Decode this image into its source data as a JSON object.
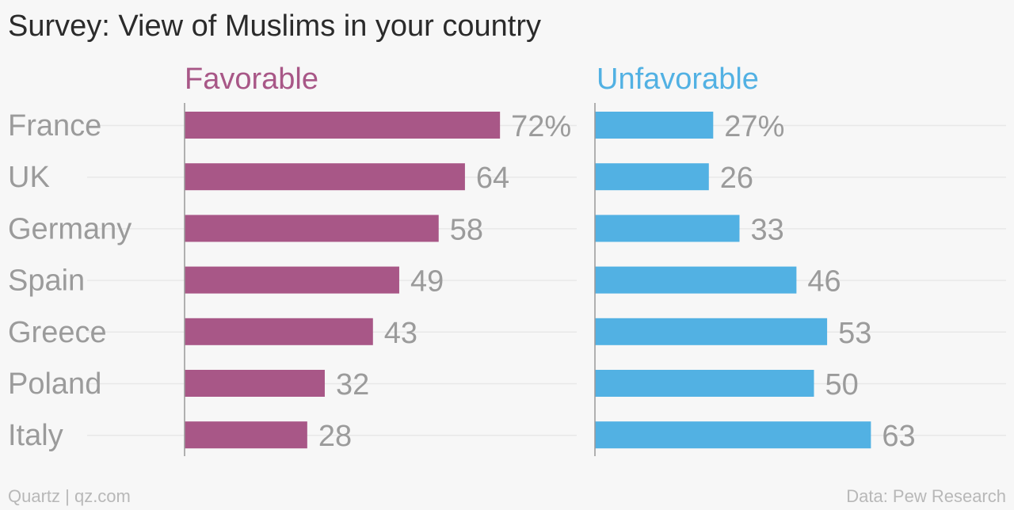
{
  "title": "Survey: View of Muslims in your country",
  "footer": {
    "source_left": "Quartz | qz.com",
    "source_right": "Data: Pew Research"
  },
  "colors": {
    "favorable": "#a85787",
    "unfavorable": "#52b1e3",
    "label": "#9b9b9b",
    "gridline": "#e8e8e8",
    "axis": "#999999"
  },
  "chart_data": {
    "type": "bar",
    "orientation": "horizontal",
    "categories": [
      "France",
      "UK",
      "Germany",
      "Spain",
      "Greece",
      "Poland",
      "Italy"
    ],
    "series": [
      {
        "name": "Favorable",
        "values": [
          72,
          64,
          58,
          49,
          43,
          32,
          28
        ],
        "value_labels": [
          "72%",
          "64",
          "58",
          "49",
          "43",
          "32",
          "28"
        ]
      },
      {
        "name": "Unfavorable",
        "values": [
          27,
          26,
          33,
          46,
          53,
          50,
          63
        ],
        "value_labels": [
          "27%",
          "26",
          "33",
          "46",
          "53",
          "50",
          "63"
        ]
      }
    ],
    "layout": "side-by-side panels",
    "grid": true
  }
}
